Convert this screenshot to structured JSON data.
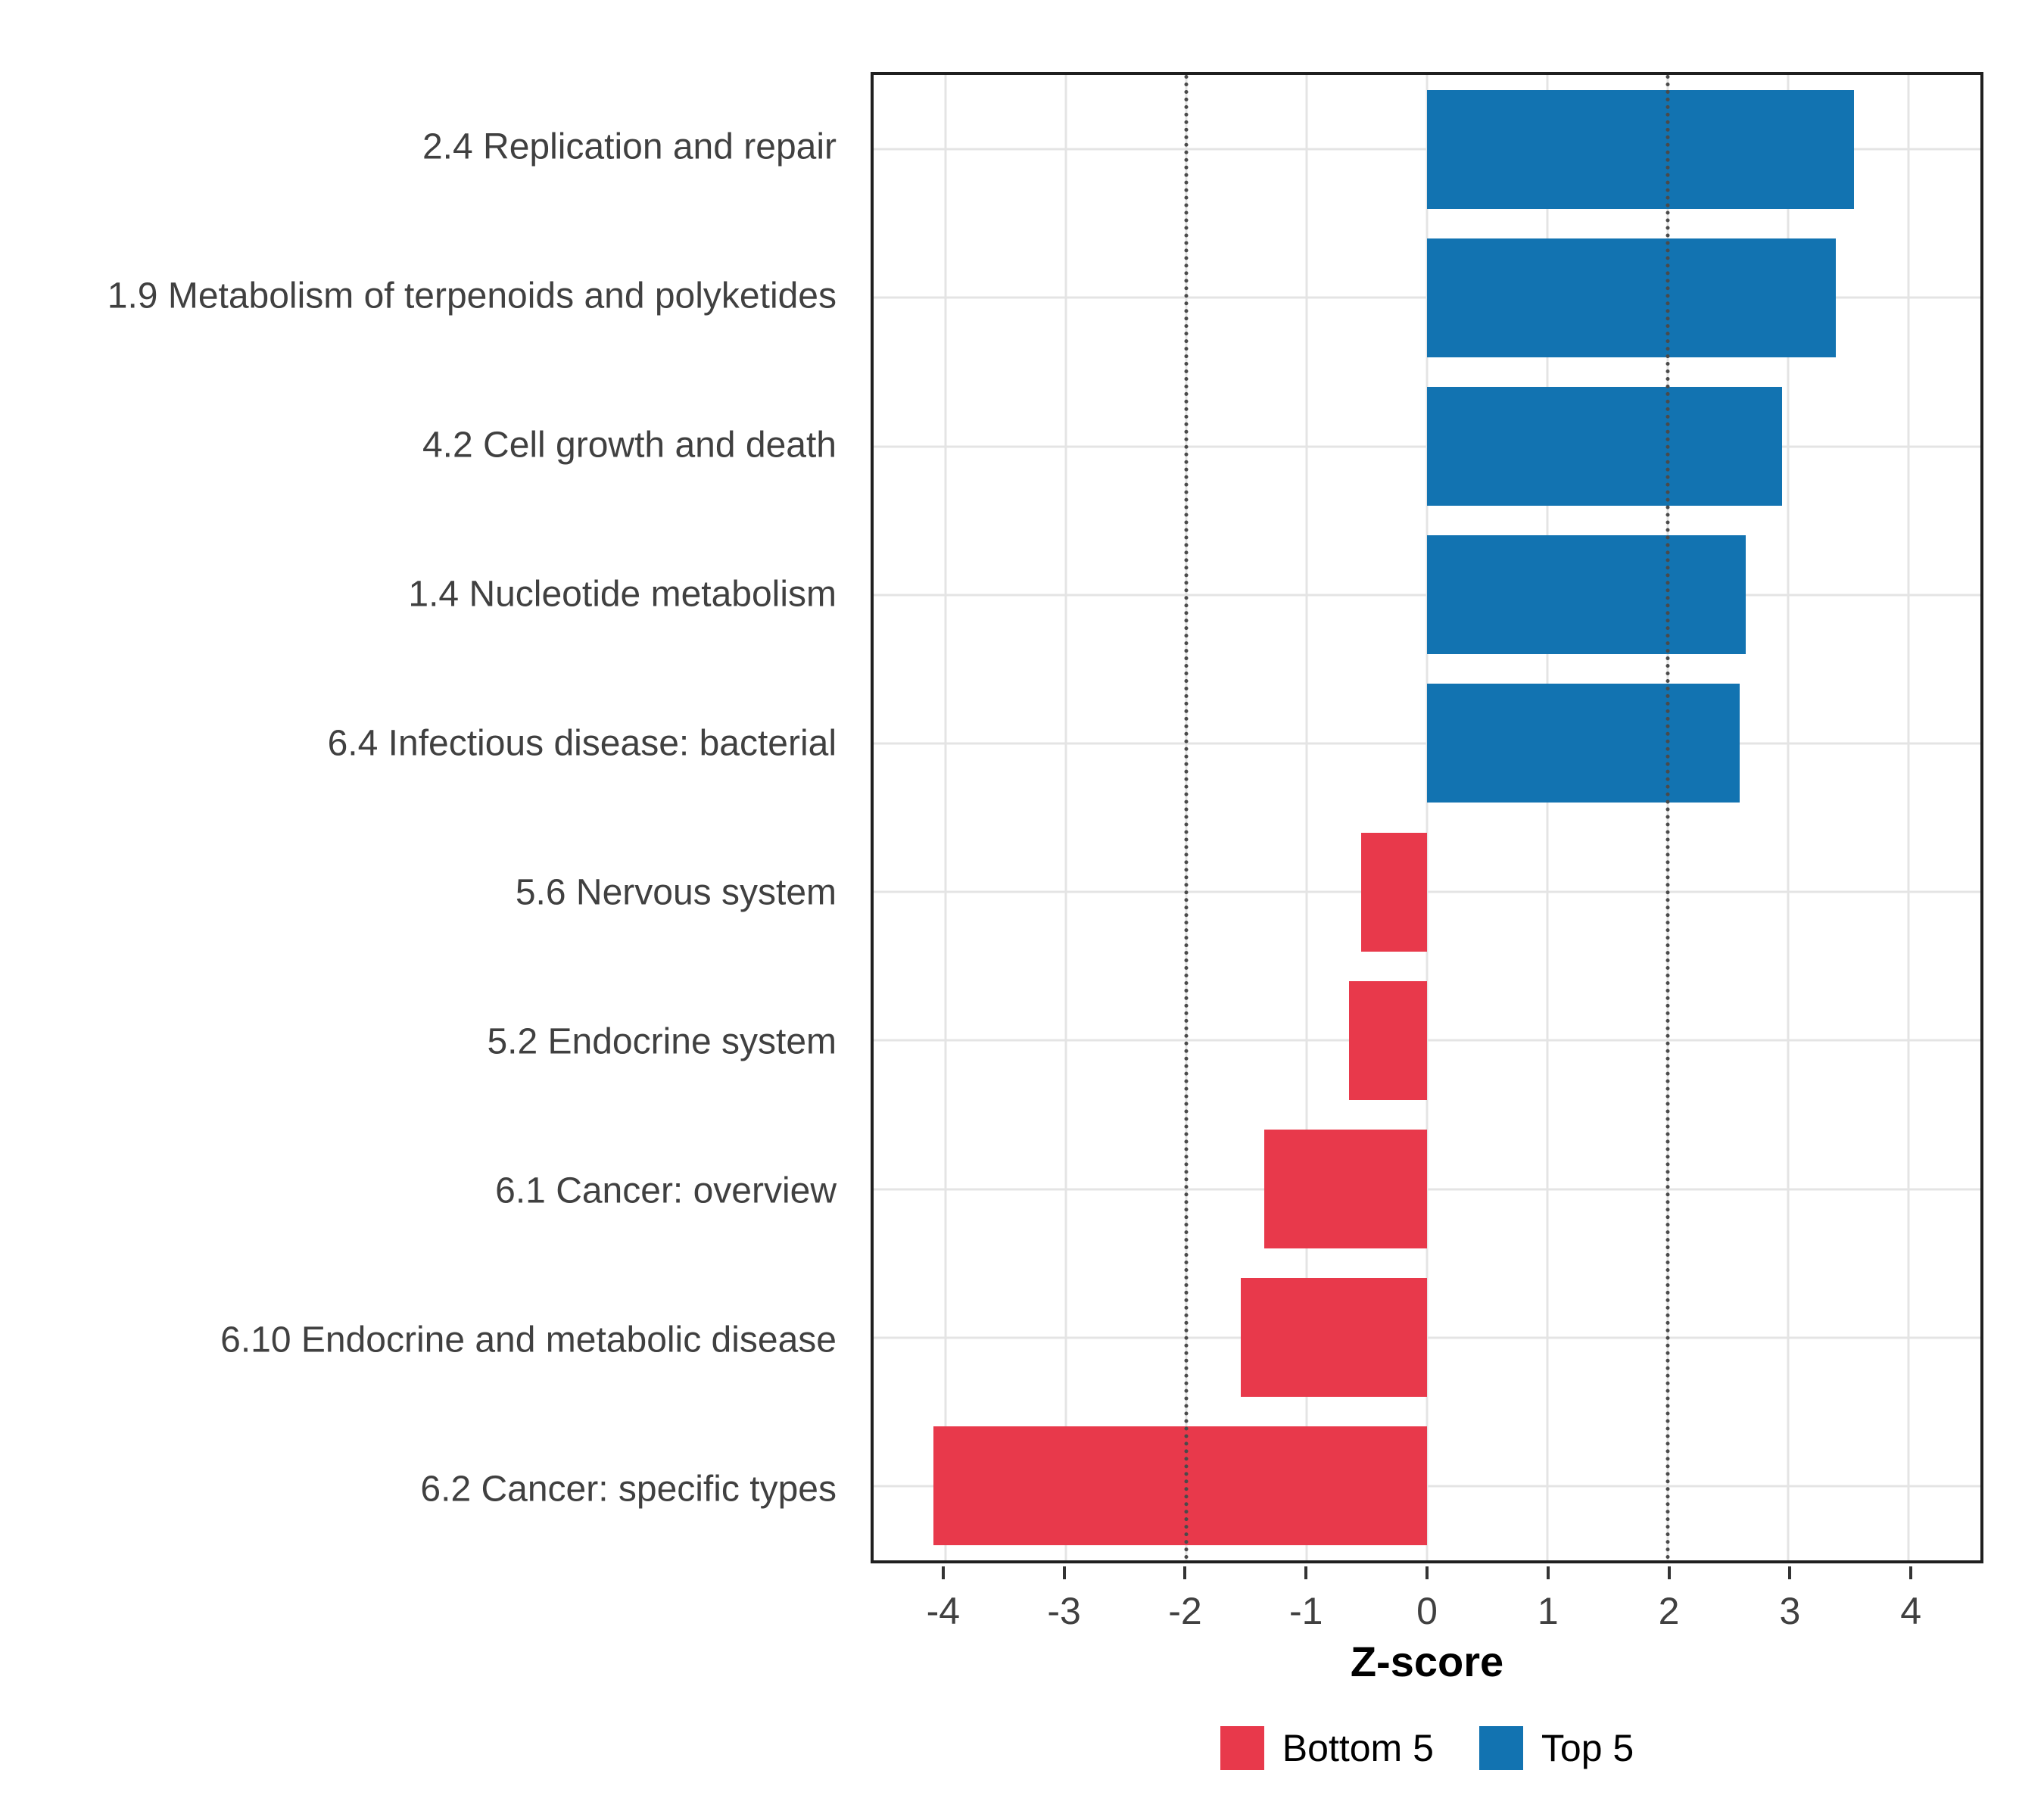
{
  "chart_data": {
    "type": "bar",
    "orientation": "horizontal",
    "title": "",
    "xlabel": "Z-score",
    "ylabel": "",
    "xlim": [
      -4.6,
      4.6
    ],
    "x_ticks": [
      -4,
      -3,
      -2,
      -1,
      0,
      1,
      2,
      3,
      4
    ],
    "reference_lines": [
      -2,
      2
    ],
    "grid": true,
    "legend_position": "bottom",
    "categories": [
      "2.4 Replication and repair",
      "1.9 Metabolism of terpenoids and polyketides",
      "4.2 Cell growth and death",
      "1.4 Nucleotide metabolism",
      "6.4 Infectious disease: bacterial",
      "5.6 Nervous system",
      "5.2 Endocrine system",
      "6.1 Cancer: overview",
      "6.10 Endocrine and metabolic disease",
      "6.2 Cancer: specific types"
    ],
    "values": [
      3.55,
      3.4,
      2.95,
      2.65,
      2.6,
      -0.55,
      -0.65,
      -1.35,
      -1.55,
      -4.1
    ],
    "groups": [
      "Top 5",
      "Top 5",
      "Top 5",
      "Top 5",
      "Top 5",
      "Bottom 5",
      "Bottom 5",
      "Bottom 5",
      "Bottom 5",
      "Bottom 5"
    ],
    "colors": {
      "top5": "#1273B1",
      "bottom5": "#E8394B"
    },
    "legend": [
      {
        "label": "Bottom 5",
        "color": "#E8394B"
      },
      {
        "label": "Top 5",
        "color": "#1273B1"
      }
    ]
  }
}
